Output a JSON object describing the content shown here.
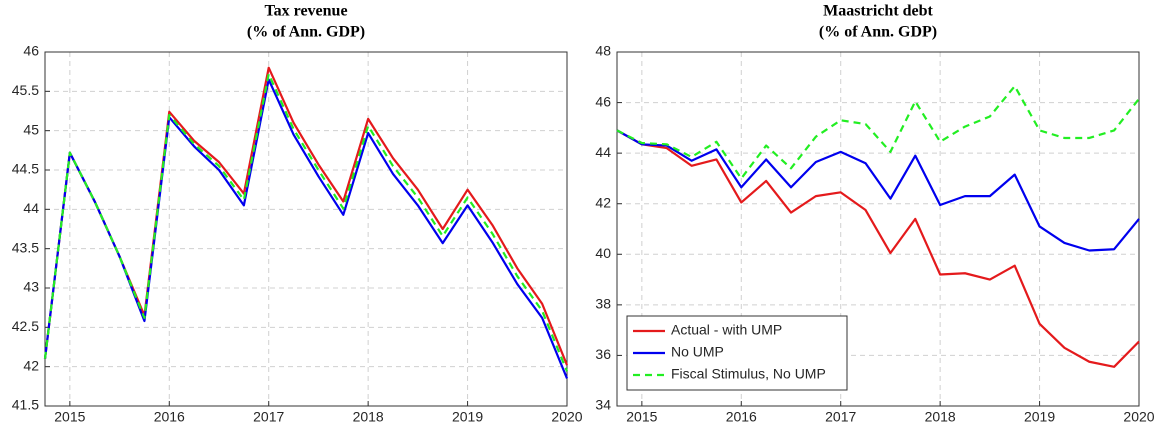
{
  "chart_data": [
    {
      "type": "line",
      "title": "Tax revenue",
      "subtitle": "(% of Ann. GDP)",
      "x": [
        2014.75,
        2015,
        2015.25,
        2015.5,
        2015.75,
        2016,
        2016.25,
        2016.5,
        2016.75,
        2017,
        2017.25,
        2017.5,
        2017.75,
        2018,
        2018.25,
        2018.5,
        2018.75,
        2019,
        2019.25,
        2019.5,
        2019.75,
        2020
      ],
      "xlim": [
        2014.75,
        2020
      ],
      "xticks": [
        2015,
        2016,
        2017,
        2018,
        2019,
        2020
      ],
      "ylim": [
        41.5,
        46
      ],
      "yticks": [
        41.5,
        42,
        42.5,
        43,
        43.5,
        44,
        44.5,
        45,
        45.5,
        46
      ],
      "grid": true,
      "series": [
        {
          "color": "#e41a1c",
          "dash": false,
          "values": [
            42.1,
            44.72,
            44.1,
            43.4,
            42.65,
            45.24,
            44.87,
            44.6,
            44.2,
            45.8,
            45.1,
            44.57,
            44.1,
            45.15,
            44.65,
            44.25,
            43.75,
            44.25,
            43.8,
            43.25,
            42.8,
            42.02
          ]
        },
        {
          "color": "#0000ee",
          "dash": false,
          "values": [
            42.1,
            44.72,
            44.1,
            43.4,
            42.58,
            45.17,
            44.8,
            44.5,
            44.05,
            45.65,
            44.95,
            44.42,
            43.93,
            44.97,
            44.45,
            44.05,
            43.57,
            44.05,
            43.58,
            43.05,
            42.62,
            41.85
          ]
        },
        {
          "color": "#22ee22",
          "dash": true,
          "values": [
            42.1,
            44.72,
            44.1,
            43.4,
            42.62,
            45.2,
            44.83,
            44.55,
            44.12,
            45.72,
            45.02,
            44.5,
            44.01,
            45.06,
            44.55,
            44.15,
            43.66,
            44.15,
            43.69,
            43.15,
            42.71,
            41.94
          ]
        }
      ]
    },
    {
      "type": "line",
      "title": "Maastricht debt",
      "subtitle": "(% of Ann. GDP)",
      "x": [
        2014.75,
        2015,
        2015.25,
        2015.5,
        2015.75,
        2016,
        2016.25,
        2016.5,
        2016.75,
        2017,
        2017.25,
        2017.5,
        2017.75,
        2018,
        2018.25,
        2018.5,
        2018.75,
        2019,
        2019.25,
        2019.5,
        2019.75,
        2020
      ],
      "xlim": [
        2014.75,
        2020
      ],
      "xticks": [
        2015,
        2016,
        2017,
        2018,
        2019,
        2020
      ],
      "ylim": [
        34,
        48
      ],
      "yticks": [
        34,
        36,
        38,
        40,
        42,
        44,
        46,
        48
      ],
      "grid": true,
      "legend": "lower left",
      "series": [
        {
          "name": "Actual - with UMP",
          "color": "#e41a1c",
          "dash": false,
          "values": [
            44.9,
            44.35,
            44.2,
            43.5,
            43.75,
            42.05,
            42.9,
            41.65,
            42.3,
            42.45,
            41.75,
            40.05,
            41.4,
            39.2,
            39.25,
            39.0,
            39.55,
            37.25,
            36.3,
            35.75,
            35.55,
            36.55
          ]
        },
        {
          "name": "No UMP",
          "color": "#0000ee",
          "dash": false,
          "values": [
            44.9,
            44.35,
            44.3,
            43.7,
            44.15,
            42.65,
            43.75,
            42.65,
            43.65,
            44.05,
            43.6,
            42.2,
            43.9,
            41.95,
            42.3,
            42.3,
            43.15,
            41.1,
            40.45,
            40.15,
            40.2,
            41.4
          ]
        },
        {
          "name": "Fiscal Stimulus, No UMP",
          "color": "#22ee22",
          "dash": true,
          "values": [
            44.9,
            44.4,
            44.35,
            43.85,
            44.45,
            43.0,
            44.3,
            43.4,
            44.65,
            45.3,
            45.15,
            44.05,
            46.05,
            44.45,
            45.05,
            45.45,
            46.65,
            44.9,
            44.6,
            44.6,
            44.9,
            46.15
          ]
        }
      ]
    }
  ]
}
